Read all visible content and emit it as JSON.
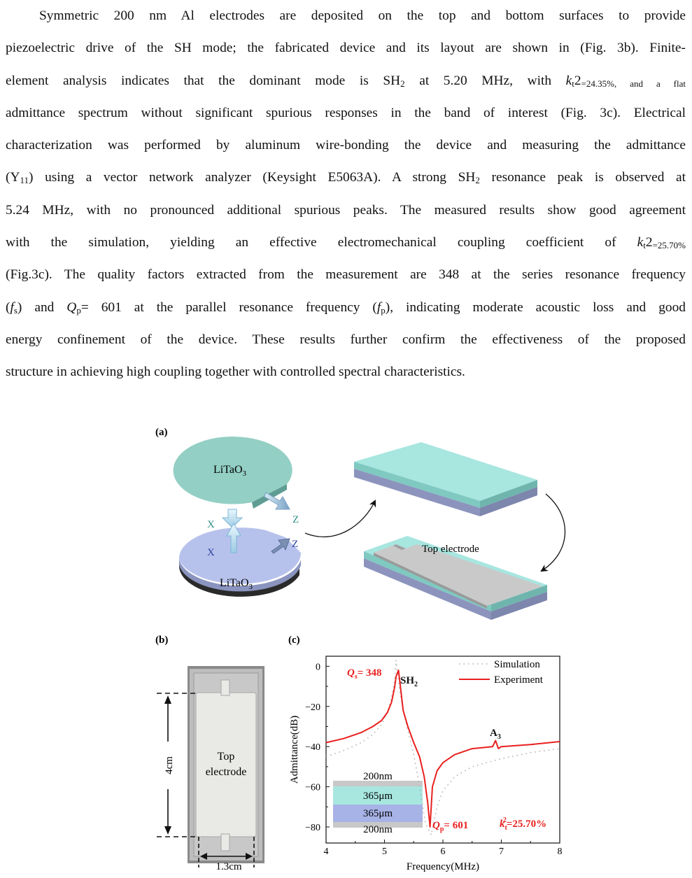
{
  "paragraph": {
    "lines": [
      [
        "Symmetric 200 nm Al electrodes are deposited on the top and bottom surfaces to provide"
      ],
      [
        "piezoelectric drive of the SH mode; the fabricated device and its layout are shown in (Fig. 3b). Finite-"
      ],
      [
        "element analysis indicates that the dominant mode is SH",
        "2",
        " at 5.20 MHz, with  k",
        "t",
        "2",
        "=24.35%, and a flat"
      ],
      [
        "admittance spectrum without significant spurious responses in the band of interest (Fig. 3c). Electrical"
      ],
      [
        "characterization was performed by aluminum wire-bonding the device and measuring the admittance"
      ],
      [
        "(Y",
        "11",
        ") using a vector network analyzer (Keysight E5063A). A strong SH",
        "2",
        " resonance peak is observed at"
      ],
      [
        "5.24 MHz, with no pronounced additional spurious peaks. The measured results show good agreement"
      ],
      [
        "with the simulation, yielding an effective electromechanical coupling coefficient of  k",
        "t",
        "2",
        "=25.70%"
      ],
      [
        "(Fig.3c). The quality factors extracted from the measurement are 348 at the series resonance frequency"
      ],
      [
        "(f",
        "s",
        ") and Q",
        "p",
        "= 601 at the parallel resonance frequency (f",
        "p",
        "), indicating moderate acoustic loss and good"
      ],
      [
        "energy confinement of the device. These results further confirm the effectiveness of the proposed"
      ],
      [
        "structure in achieving high coupling together with controlled spectral characteristics."
      ]
    ]
  },
  "figure": {
    "panel_a": {
      "label": "(a)",
      "wafer_top_label": "LiTaO",
      "wafer_top_sub": "3",
      "wafer_bottom_label": "LiTaO",
      "wafer_bottom_sub": "3",
      "axis_x_top": "X",
      "axis_z_top": "Z",
      "axis_x_bottom": "X",
      "axis_z_bottom": "Z",
      "top_electrode_label": "Top electrode",
      "colors": {
        "wafer_top": "#93cfc5",
        "wafer_bottom": "#b7c2ec",
        "electrode": "#c9c9c9",
        "layer_cyan": "#a8e6e0",
        "layer_blue": "#9aa3cc"
      }
    },
    "panel_b": {
      "label": "(b)",
      "electrode_label_line1": "Top",
      "electrode_label_line2": "electrode",
      "height_label": "4cm",
      "width_label": "1.3cm"
    },
    "panel_c": {
      "label": "(c)",
      "qs_label": "Q",
      "qs_sub": "s",
      "qs_value": "= 348",
      "qp_label": "Q",
      "qp_sub": "p",
      "qp_value": "= 601",
      "sh2_label": "SH",
      "sh2_sub": "2",
      "a3_label": "A",
      "a3_sub": "3",
      "kt_label": "k",
      "kt_sub": "t",
      "kt_sup": "2",
      "kt_value": "=25.70%",
      "inset_layers": [
        "200nm",
        "365μm",
        "365μm",
        "200nm"
      ],
      "inset_colors": [
        "#c8c8c8",
        "#a8e6e0",
        "#a7b3e6",
        "#c8c8c8"
      ],
      "highlight_color": "#e8211f"
    }
  },
  "chart_data": {
    "type": "line",
    "xlabel": "Frequency(MHz)",
    "ylabel": "Admittance(dB)",
    "xlim": [
      4,
      8
    ],
    "ylim": [
      -88,
      5
    ],
    "xticks": [
      4,
      5,
      6,
      7,
      8
    ],
    "yticks": [
      0,
      -20,
      -40,
      -60,
      -80
    ],
    "legend_position": "top-right",
    "series": [
      {
        "name": "Simulation",
        "style": "dotted",
        "color": "#b0b0b0",
        "x": [
          4.0,
          4.3,
          4.6,
          4.8,
          4.95,
          5.05,
          5.12,
          5.17,
          5.2,
          5.23,
          5.27,
          5.32,
          5.4,
          5.5,
          5.6,
          5.7,
          5.8,
          5.9,
          6.0,
          6.2,
          6.5,
          7.0,
          7.5,
          8.0
        ],
        "y": [
          -45,
          -42,
          -38,
          -34,
          -29,
          -23,
          -16,
          -8,
          3,
          -6,
          -14,
          -22,
          -32,
          -44,
          -60,
          -78,
          -84,
          -70,
          -62,
          -55,
          -50,
          -46,
          -43,
          -41
        ]
      },
      {
        "name": "Experiment",
        "style": "solid",
        "color": "#e8211f",
        "x": [
          4.0,
          4.3,
          4.6,
          4.8,
          4.95,
          5.05,
          5.12,
          5.17,
          5.2,
          5.24,
          5.28,
          5.32,
          5.4,
          5.5,
          5.6,
          5.68,
          5.74,
          5.78,
          5.82,
          5.9,
          6.0,
          6.2,
          6.5,
          6.85,
          6.9,
          6.95,
          7.0,
          7.5,
          8.0
        ],
        "y": [
          -38,
          -36,
          -33,
          -30,
          -27,
          -23,
          -18,
          -11,
          -5,
          -2,
          -12,
          -22,
          -30,
          -38,
          -45,
          -55,
          -68,
          -80,
          -60,
          -52,
          -48,
          -44,
          -41,
          -40,
          -37,
          -41,
          -40,
          -39,
          -37.5
        ]
      }
    ]
  }
}
